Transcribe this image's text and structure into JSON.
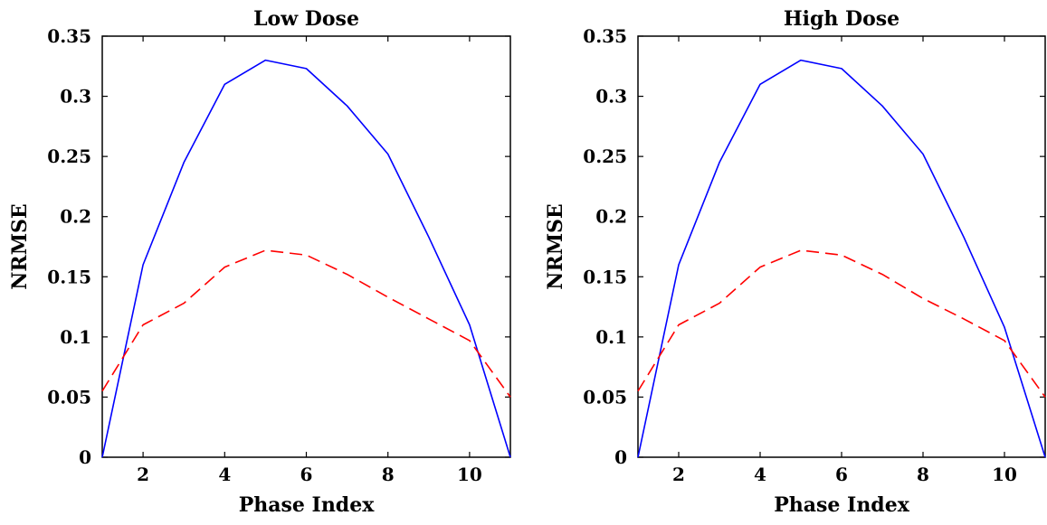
{
  "chart_data": [
    {
      "type": "line",
      "title": "Low Dose",
      "xlabel": "Phase Index",
      "ylabel": "NRMSE",
      "xlim": [
        1,
        11
      ],
      "ylim": [
        0,
        0.35
      ],
      "xticks": [
        2,
        4,
        6,
        8,
        10
      ],
      "yticks": [
        0,
        0.05,
        0.1,
        0.15,
        0.2,
        0.25,
        0.3,
        0.35
      ],
      "xtick_labels": [
        "2",
        "4",
        "6",
        "8",
        "10"
      ],
      "ytick_labels": [
        "0",
        "0.05",
        "0.1",
        "0.15",
        "0.2",
        "0.25",
        "0.3",
        "0.35"
      ],
      "grid": false,
      "x": [
        1,
        2,
        3,
        4,
        5,
        6,
        7,
        8,
        9,
        10,
        11
      ],
      "series": [
        {
          "color": "#0000ff",
          "style": "solid",
          "values": [
            0.0,
            0.16,
            0.245,
            0.31,
            0.33,
            0.323,
            0.292,
            0.252,
            0.183,
            0.11,
            0.0
          ]
        },
        {
          "color": "#ff0000",
          "style": "dashed",
          "values": [
            0.055,
            0.11,
            0.128,
            0.158,
            0.172,
            0.168,
            0.152,
            0.133,
            0.115,
            0.097,
            0.05
          ]
        }
      ]
    },
    {
      "type": "line",
      "title": "High Dose",
      "xlabel": "Phase Index",
      "ylabel": "NRMSE",
      "xlim": [
        1,
        11
      ],
      "ylim": [
        0,
        0.35
      ],
      "xticks": [
        2,
        4,
        6,
        8,
        10
      ],
      "yticks": [
        0,
        0.05,
        0.1,
        0.15,
        0.2,
        0.25,
        0.3,
        0.35
      ],
      "xtick_labels": [
        "2",
        "4",
        "6",
        "8",
        "10"
      ],
      "ytick_labels": [
        "0",
        "0.05",
        "0.1",
        "0.15",
        "0.2",
        "0.25",
        "0.3",
        "0.35"
      ],
      "grid": false,
      "x": [
        1,
        2,
        3,
        4,
        5,
        6,
        7,
        8,
        9,
        10,
        11
      ],
      "series": [
        {
          "color": "#0000ff",
          "style": "solid",
          "values": [
            0.0,
            0.16,
            0.245,
            0.31,
            0.33,
            0.323,
            0.292,
            0.252,
            0.183,
            0.108,
            0.0
          ]
        },
        {
          "color": "#ff0000",
          "style": "dashed",
          "values": [
            0.055,
            0.11,
            0.128,
            0.158,
            0.172,
            0.168,
            0.152,
            0.132,
            0.115,
            0.097,
            0.05
          ]
        }
      ]
    }
  ]
}
